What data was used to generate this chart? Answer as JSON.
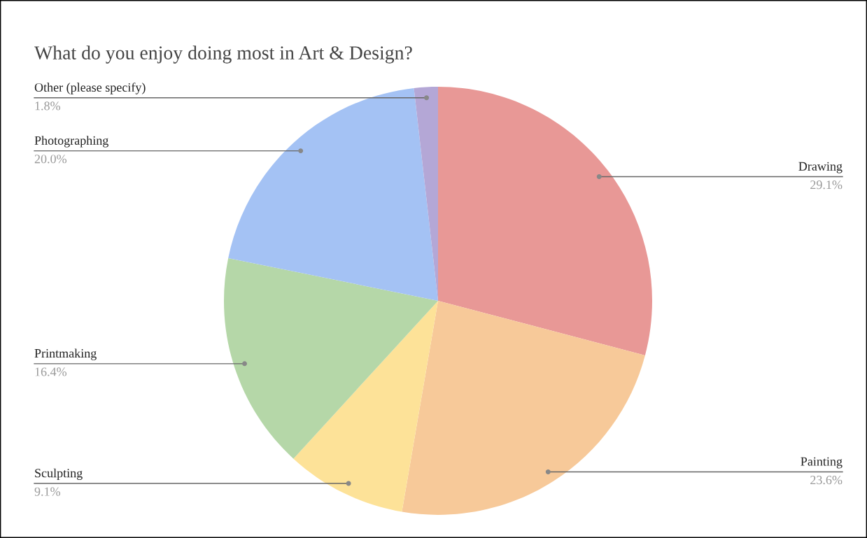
{
  "chart_data": {
    "type": "pie",
    "title": "What do you enjoy doing most in Art & Design?",
    "categories": [
      "Drawing",
      "Painting",
      "Sculpting",
      "Printmaking",
      "Photographing",
      "Other (please specify)"
    ],
    "values": [
      29.1,
      23.6,
      9.1,
      16.4,
      20.0,
      1.8
    ],
    "value_labels": [
      "29.1%",
      "23.6%",
      "9.1%",
      "16.4%",
      "20.0%",
      "1.8%"
    ],
    "colors": [
      "#e89896",
      "#f7c999",
      "#fde298",
      "#b5d7a8",
      "#a4c2f4",
      "#b4a7d6"
    ]
  }
}
